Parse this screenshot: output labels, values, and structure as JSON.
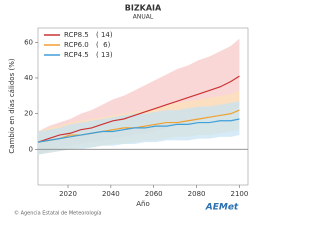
{
  "chart_data": {
    "type": "line_band",
    "title": "BIZKAIA",
    "subtitle": "ANUAL",
    "y_label": "Cambio en días cálidos (%)",
    "x_label": "Año",
    "x": [
      2006,
      2011,
      2016,
      2021,
      2026,
      2031,
      2036,
      2041,
      2046,
      2051,
      2056,
      2061,
      2066,
      2071,
      2076,
      2081,
      2086,
      2091,
      2096,
      2100
    ],
    "xlim": [
      2006,
      2104
    ],
    "xticks": [
      2020,
      2040,
      2060,
      2080,
      2100
    ],
    "ylim": [
      -20,
      68
    ],
    "yticks": [
      0,
      20,
      40,
      60
    ],
    "series": [
      {
        "name": "RCP8.5",
        "count": "( 14)",
        "color": "#cc3333",
        "band_color": "#f6c6c6",
        "values": [
          4,
          6,
          8,
          9,
          11,
          12,
          14,
          16,
          17,
          19,
          21,
          23,
          25,
          27,
          29,
          31,
          33,
          35,
          38,
          41
        ],
        "upper": [
          10,
          13,
          15,
          17,
          20,
          22,
          25,
          28,
          30,
          33,
          36,
          39,
          42,
          45,
          47,
          50,
          52,
          55,
          58,
          62
        ],
        "lower": [
          -3,
          -1,
          1,
          2,
          3,
          4,
          5,
          6,
          7,
          8,
          9,
          10,
          12,
          13,
          14,
          16,
          18,
          19,
          21,
          24
        ]
      },
      {
        "name": "RCP6.0",
        "count": "(  6)",
        "color": "#f0a030",
        "band_color": "#fde3b8",
        "values": [
          4,
          5,
          6,
          8,
          8,
          9,
          10,
          11,
          12,
          12,
          13,
          14,
          15,
          15,
          16,
          17,
          18,
          19,
          20,
          22
        ],
        "upper": [
          10,
          12,
          13,
          15,
          16,
          17,
          18,
          19,
          20,
          21,
          22,
          23,
          25,
          26,
          27,
          28,
          29,
          30,
          31,
          33
        ],
        "lower": [
          -3,
          -2,
          -1,
          0,
          1,
          1,
          2,
          3,
          3,
          4,
          5,
          5,
          6,
          7,
          7,
          8,
          8,
          9,
          10,
          11
        ]
      },
      {
        "name": "RCP4.5",
        "count": "( 13)",
        "color": "#3f9fd8",
        "band_color": "#c4e2f3",
        "values": [
          4,
          5,
          6,
          7,
          8,
          9,
          10,
          10,
          11,
          12,
          12,
          13,
          13,
          14,
          14,
          15,
          15,
          16,
          16,
          17
        ],
        "upper": [
          10,
          11,
          12,
          14,
          15,
          16,
          17,
          18,
          19,
          20,
          20,
          21,
          22,
          22,
          23,
          24,
          24,
          25,
          26,
          27
        ],
        "lower": [
          -3,
          -2,
          -1,
          0,
          0,
          1,
          2,
          2,
          3,
          3,
          4,
          4,
          5,
          5,
          5,
          6,
          6,
          7,
          7,
          8
        ]
      }
    ],
    "footer": "© Agencia Estatal de Meteorología",
    "logo": "AEMet"
  }
}
